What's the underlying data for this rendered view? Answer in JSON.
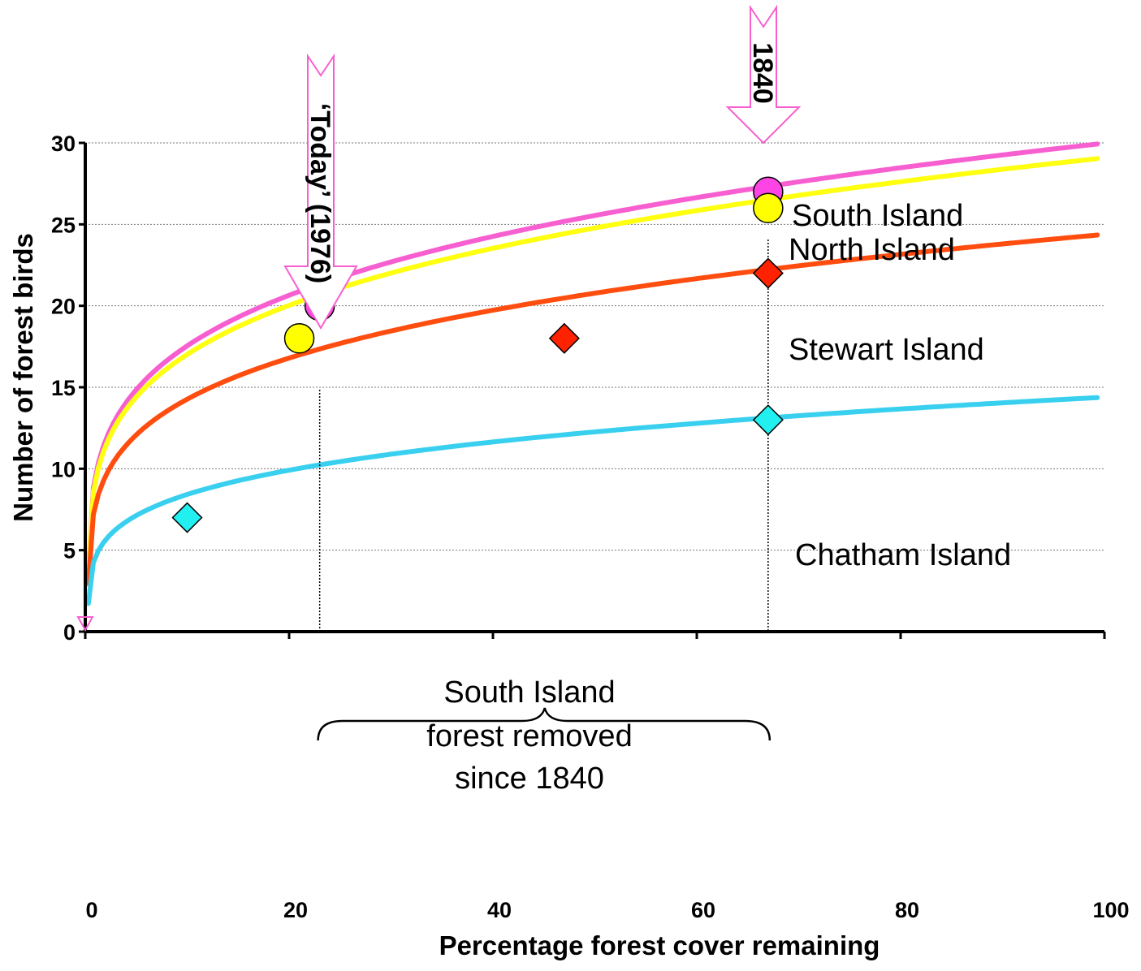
{
  "chart_data": {
    "type": "line",
    "xlabel": "Percentage forest cover remaining",
    "ylabel": "Number of forest birds",
    "xlim": [
      0,
      100
    ],
    "ylim": [
      0,
      30
    ],
    "x_ticks": [
      "0",
      "20",
      "40",
      "60",
      "80",
      "100"
    ],
    "y_ticks": [
      "0",
      "5",
      "10",
      "15",
      "20",
      "25",
      "30"
    ],
    "grid": "horizontal dotted",
    "series": [
      {
        "name": "South Island",
        "color": "#f75fd1",
        "curve_max": 30,
        "points": [
          [
            23,
            20
          ],
          [
            67,
            27
          ]
        ],
        "marker": "circle",
        "marker_color": "#ff44e6"
      },
      {
        "name": "North Island",
        "color": "#ffff10",
        "curve_max": 29.1,
        "points": [
          [
            21,
            18
          ],
          [
            67,
            26
          ]
        ],
        "marker": "circle",
        "marker_color": "#ffff00"
      },
      {
        "name": "Stewart Island",
        "color": "#ff4d10",
        "curve_max": 24.4,
        "points": [
          [
            47,
            18
          ],
          [
            67,
            22
          ]
        ],
        "marker": "diamond",
        "marker_color": "#ff2200"
      },
      {
        "name": "Chatham Island",
        "color": "#39d0ef",
        "curve_max": 14.4,
        "points": [
          [
            10,
            7
          ],
          [
            67,
            13
          ]
        ],
        "marker": "diamond",
        "marker_color": "#22f0f0"
      }
    ],
    "annotations": {
      "today": {
        "text": "‘Today’ (1976)",
        "x": 23
      },
      "year_1840": {
        "text": "1840",
        "x": 67
      },
      "brace_text": [
        "South Island",
        "forest removed",
        "since 1840"
      ],
      "brace_range": [
        23,
        67
      ]
    }
  }
}
